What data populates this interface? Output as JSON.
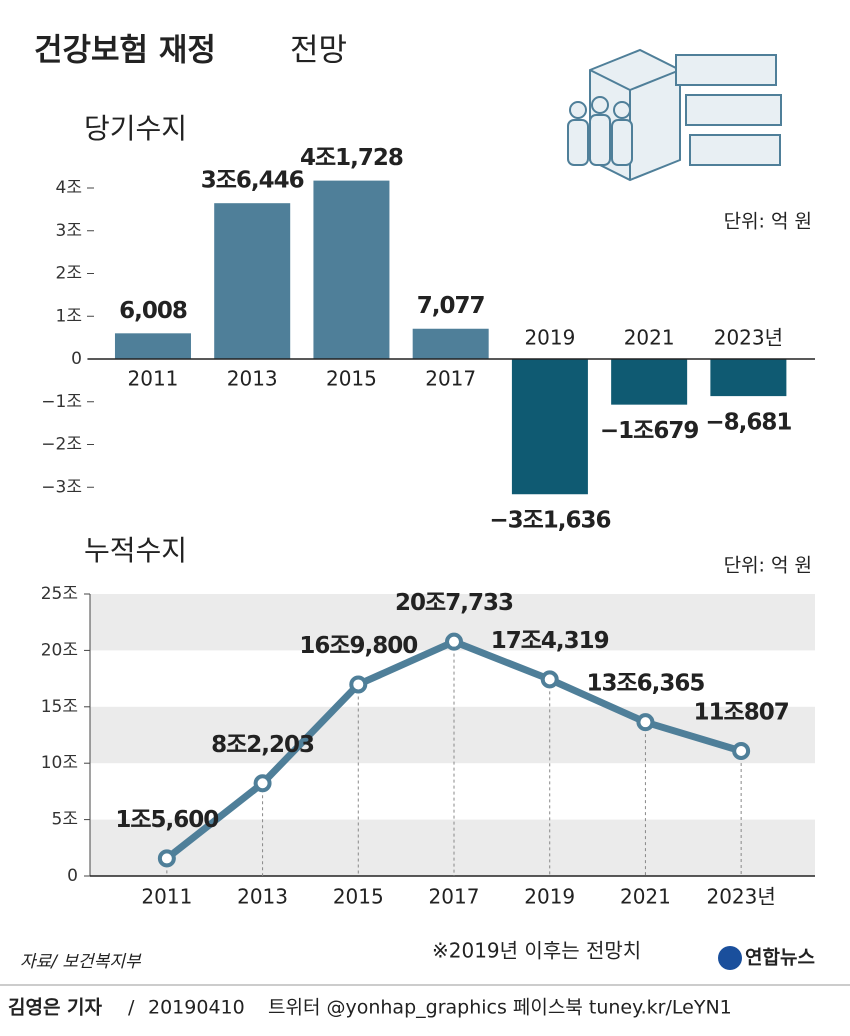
{
  "header": {
    "title": "건강보험 재정",
    "title_suffix": "전망"
  },
  "chart_data": [
    {
      "type": "bar",
      "title": "당기수지",
      "unit": "단위: 억 원",
      "categories": [
        "2011",
        "2013",
        "2015",
        "2017",
        "2019",
        "2021",
        "2023년"
      ],
      "values": [
        6008,
        36446,
        41728,
        7077,
        -31636,
        -10679,
        -8681
      ],
      "value_labels": [
        "6,008",
        "3조6,446",
        "4조1,728",
        "7,077",
        "−3조1,636",
        "−1조679",
        "−8,681"
      ],
      "color": "#4f7f99",
      "negative_color": "#0f5a72",
      "ylim": [
        -32000,
        42000
      ],
      "yticks": [
        {
          "value": 40000,
          "label": "4조"
        },
        {
          "value": 30000,
          "label": "3조"
        },
        {
          "value": 20000,
          "label": "2조"
        },
        {
          "value": 10000,
          "label": "1조"
        },
        0,
        {
          "value": -10000,
          "label": "−1조"
        },
        {
          "value": -20000,
          "label": "−2조"
        },
        {
          "value": -30000,
          "label": "−3조"
        }
      ]
    },
    {
      "type": "line",
      "title": "누적수지",
      "unit": "단위: 억 원",
      "categories": [
        "2011",
        "2013",
        "2015",
        "2017",
        "2019",
        "2021",
        "2023년"
      ],
      "values": [
        15600,
        82203,
        169800,
        207733,
        174319,
        136365,
        110807
      ],
      "value_labels": [
        "1조5,600",
        "8조2,203",
        "16조9,800",
        "20조7,733",
        "17조4,319",
        "13조6,365",
        "11조807"
      ],
      "color": "#4f7f99",
      "grid": true,
      "ylim": [
        0,
        250000
      ],
      "yticks": [
        0,
        {
          "value": 50000,
          "label": "5조"
        },
        {
          "value": 100000,
          "label": "10조"
        },
        {
          "value": 150000,
          "label": "15조"
        },
        {
          "value": 200000,
          "label": "20조"
        },
        {
          "value": 250000,
          "label": "25조"
        }
      ]
    }
  ],
  "note": "※2019년 이후는 전망치",
  "source": "자료/ 보건복지부",
  "logo": "연합뉴스",
  "credit": {
    "author": "김영은 기자",
    "date": "20190410",
    "links": "트위터 @yonhap_graphics  페이스북 tuney.kr/LeYN1"
  }
}
